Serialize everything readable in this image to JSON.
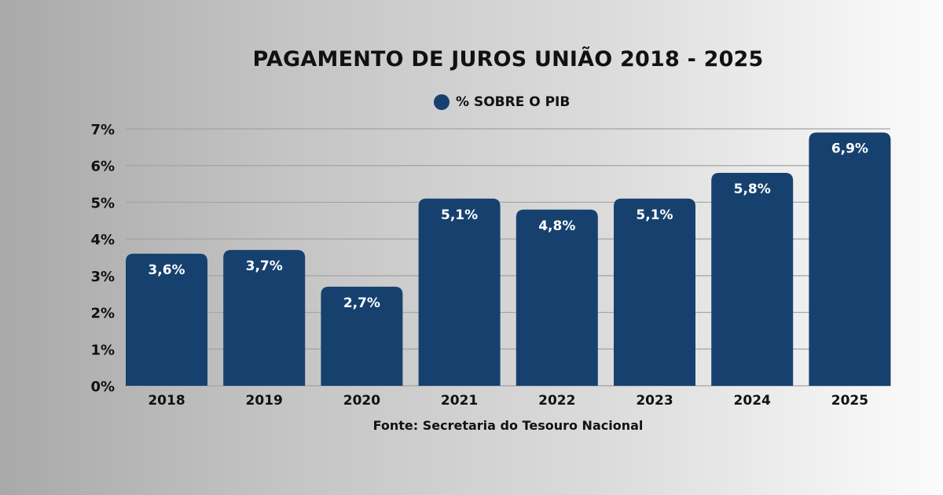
{
  "chart_data": {
    "type": "bar",
    "title": "PAGAMENTO DE JUROS UNIÃO 2018 - 2025",
    "legend": [
      {
        "name": "% SOBRE O PIB",
        "color": "#16416f"
      }
    ],
    "legend_position": "top-center",
    "categories": [
      "2018",
      "2019",
      "2020",
      "2021",
      "2022",
      "2023",
      "2024",
      "2025"
    ],
    "values": [
      3.6,
      3.7,
      2.7,
      5.1,
      4.8,
      5.1,
      5.8,
      6.9
    ],
    "data_labels": [
      "3,6%",
      "3,7%",
      "2,7%",
      "5,1%",
      "4,8%",
      "5,1%",
      "5,8%",
      "6,9%"
    ],
    "yticks": [
      0,
      1,
      2,
      3,
      4,
      5,
      6,
      7
    ],
    "ytick_labels": [
      "0%",
      "1%",
      "2%",
      "3%",
      "4%",
      "5%",
      "6%",
      "7%"
    ],
    "ylim": [
      0,
      7
    ],
    "grid": true,
    "xlabel": "",
    "ylabel": "",
    "source": "Fonte: Secretaria do Tesouro Nacional"
  }
}
